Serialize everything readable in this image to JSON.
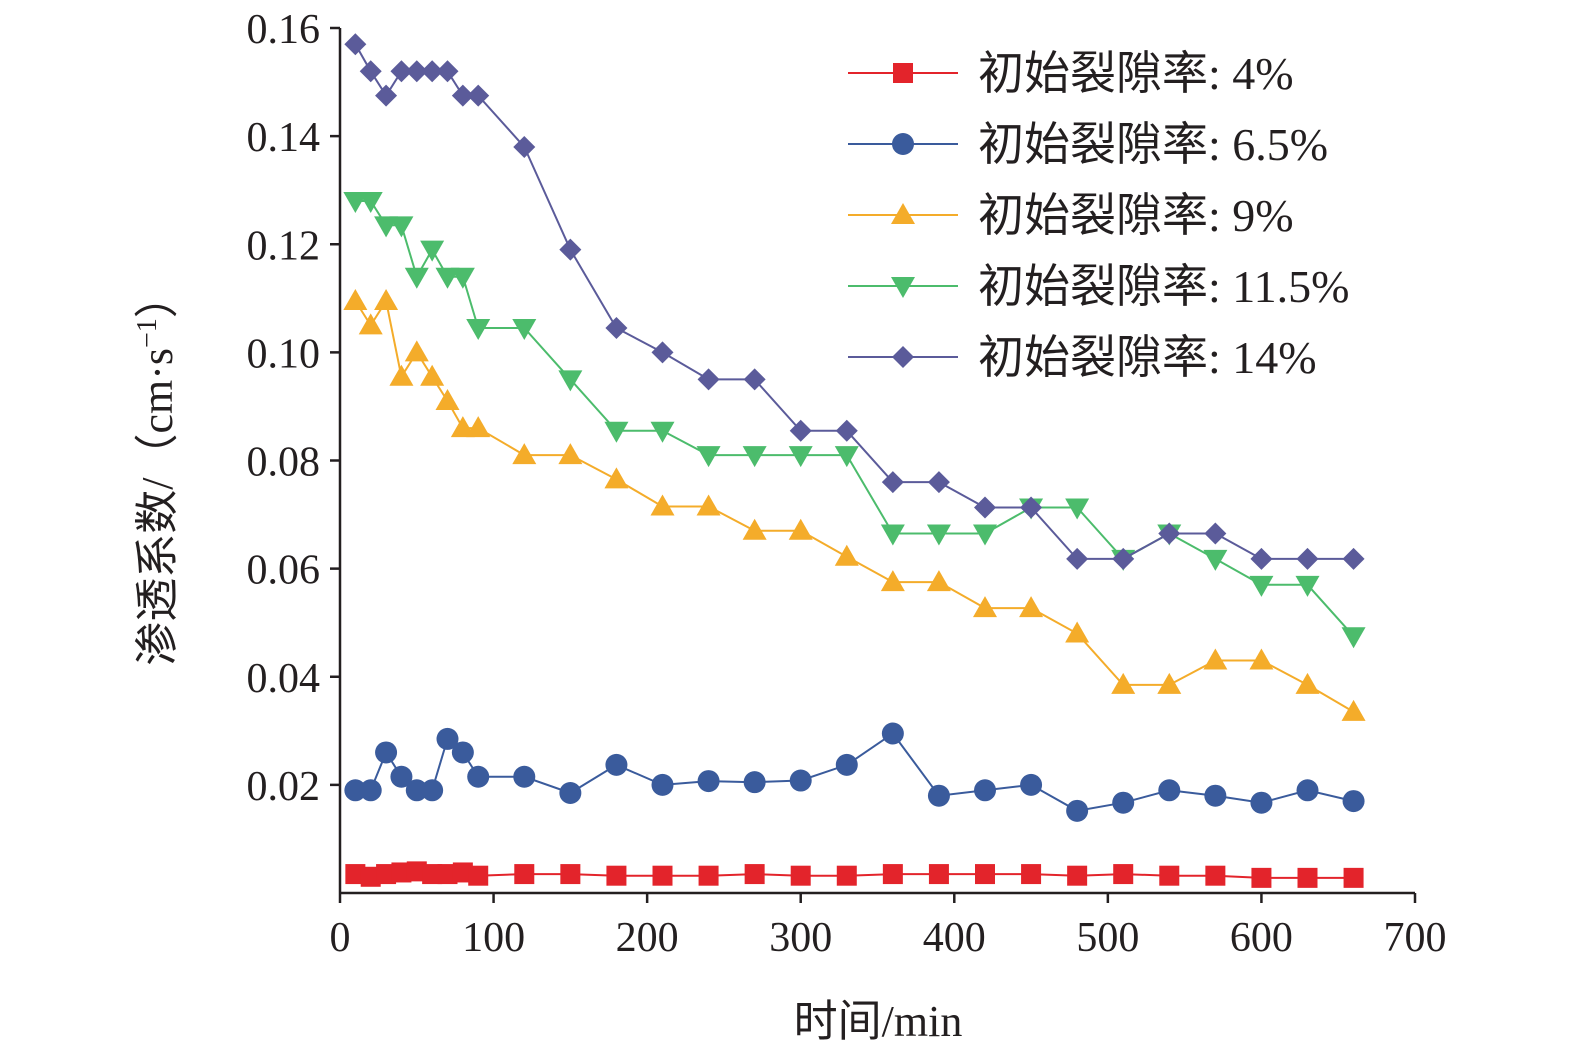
{
  "chart_data": {
    "type": "line",
    "title": "",
    "xlabel": "时间/min",
    "ylabel": "渗透系数/（cm·s",
    "ylabel_sup": "−1",
    "ylabel_close": "）",
    "xlim": [
      0,
      700
    ],
    "ylim": [
      0,
      0.16
    ],
    "xticks": [
      0,
      100,
      200,
      300,
      400,
      500,
      600,
      700
    ],
    "xtick_labels": [
      "0",
      "100",
      "200",
      "300",
      "400",
      "500",
      "600",
      "700"
    ],
    "yticks": [
      0.02,
      0.04,
      0.06,
      0.08,
      0.1,
      0.12,
      0.14,
      0.16
    ],
    "ytick_labels": [
      "0.02",
      "0.04",
      "0.06",
      "0.08",
      "0.10",
      "0.12",
      "0.14",
      "0.16"
    ],
    "grid": false,
    "legend_position": "top-right",
    "series": [
      {
        "name": "初始裂隙率: 4%",
        "color": "#e3242b",
        "marker": "square",
        "points": [
          [
            10,
            0.0035
          ],
          [
            20,
            0.003
          ],
          [
            30,
            0.0035
          ],
          [
            40,
            0.0038
          ],
          [
            50,
            0.004
          ],
          [
            60,
            0.0035
          ],
          [
            70,
            0.0035
          ],
          [
            80,
            0.0038
          ],
          [
            90,
            0.0032
          ],
          [
            120,
            0.0035
          ],
          [
            150,
            0.0035
          ],
          [
            180,
            0.0032
          ],
          [
            210,
            0.0032
          ],
          [
            240,
            0.0032
          ],
          [
            270,
            0.0035
          ],
          [
            300,
            0.0032
          ],
          [
            330,
            0.0032
          ],
          [
            360,
            0.0035
          ],
          [
            390,
            0.0035
          ],
          [
            420,
            0.0035
          ],
          [
            450,
            0.0035
          ],
          [
            480,
            0.0032
          ],
          [
            510,
            0.0035
          ],
          [
            540,
            0.0032
          ],
          [
            570,
            0.0032
          ],
          [
            600,
            0.0028
          ],
          [
            630,
            0.0028
          ],
          [
            660,
            0.0028
          ]
        ]
      },
      {
        "name": "初始裂隙率: 6.5%",
        "color": "#3a5b9c",
        "marker": "circle",
        "points": [
          [
            10,
            0.019
          ],
          [
            20,
            0.019
          ],
          [
            30,
            0.026
          ],
          [
            40,
            0.0215
          ],
          [
            50,
            0.019
          ],
          [
            60,
            0.019
          ],
          [
            70,
            0.0285
          ],
          [
            80,
            0.026
          ],
          [
            90,
            0.0215
          ],
          [
            120,
            0.0215
          ],
          [
            150,
            0.0185
          ],
          [
            180,
            0.0237
          ],
          [
            210,
            0.02
          ],
          [
            240,
            0.0207
          ],
          [
            270,
            0.0205
          ],
          [
            300,
            0.0208
          ],
          [
            330,
            0.0237
          ],
          [
            360,
            0.0295
          ],
          [
            390,
            0.018
          ],
          [
            420,
            0.019
          ],
          [
            450,
            0.02
          ],
          [
            480,
            0.0152
          ],
          [
            510,
            0.0167
          ],
          [
            540,
            0.019
          ],
          [
            570,
            0.018
          ],
          [
            600,
            0.0167
          ],
          [
            630,
            0.019
          ],
          [
            660,
            0.017
          ]
        ]
      },
      {
        "name": "初始裂隙率: 9%",
        "color": "#f4ac2a",
        "marker": "triangle-up",
        "points": [
          [
            10,
            0.1095
          ],
          [
            20,
            0.105
          ],
          [
            30,
            0.1095
          ],
          [
            40,
            0.0955
          ],
          [
            50,
            0.1
          ],
          [
            60,
            0.0955
          ],
          [
            70,
            0.091
          ],
          [
            80,
            0.086
          ],
          [
            90,
            0.086
          ],
          [
            120,
            0.081
          ],
          [
            150,
            0.081
          ],
          [
            180,
            0.0765
          ],
          [
            210,
            0.0715
          ],
          [
            240,
            0.0715
          ],
          [
            270,
            0.067
          ],
          [
            300,
            0.067
          ],
          [
            330,
            0.0622
          ],
          [
            360,
            0.0575
          ],
          [
            390,
            0.0575
          ],
          [
            420,
            0.0527
          ],
          [
            450,
            0.0527
          ],
          [
            480,
            0.048
          ],
          [
            510,
            0.0385
          ],
          [
            540,
            0.0385
          ],
          [
            570,
            0.043
          ],
          [
            600,
            0.043
          ],
          [
            630,
            0.0385
          ],
          [
            660,
            0.0335
          ]
        ]
      },
      {
        "name": "初始裂隙率: 11.5%",
        "color": "#4cbc6c",
        "marker": "triangle-down",
        "points": [
          [
            10,
            0.128
          ],
          [
            20,
            0.128
          ],
          [
            30,
            0.1235
          ],
          [
            40,
            0.1235
          ],
          [
            50,
            0.114
          ],
          [
            60,
            0.119
          ],
          [
            70,
            0.114
          ],
          [
            80,
            0.114
          ],
          [
            90,
            0.1045
          ],
          [
            120,
            0.1045
          ],
          [
            150,
            0.095
          ],
          [
            180,
            0.0855
          ],
          [
            210,
            0.0855
          ],
          [
            240,
            0.081
          ],
          [
            270,
            0.081
          ],
          [
            300,
            0.081
          ],
          [
            330,
            0.081
          ],
          [
            360,
            0.0665
          ],
          [
            390,
            0.0665
          ],
          [
            420,
            0.0665
          ],
          [
            450,
            0.0713
          ],
          [
            480,
            0.0713
          ],
          [
            510,
            0.0618
          ],
          [
            540,
            0.0665
          ],
          [
            570,
            0.0618
          ],
          [
            600,
            0.057
          ],
          [
            630,
            0.057
          ],
          [
            660,
            0.0475
          ]
        ]
      },
      {
        "name": "初始裂隙率: 14%",
        "color": "#5b5b9a",
        "marker": "diamond",
        "points": [
          [
            10,
            0.157
          ],
          [
            20,
            0.152
          ],
          [
            30,
            0.1475
          ],
          [
            40,
            0.152
          ],
          [
            50,
            0.152
          ],
          [
            60,
            0.152
          ],
          [
            70,
            0.152
          ],
          [
            80,
            0.1475
          ],
          [
            90,
            0.1475
          ],
          [
            120,
            0.138
          ],
          [
            150,
            0.119
          ],
          [
            180,
            0.1045
          ],
          [
            210,
            0.1
          ],
          [
            240,
            0.095
          ],
          [
            270,
            0.095
          ],
          [
            300,
            0.0855
          ],
          [
            330,
            0.0855
          ],
          [
            360,
            0.076
          ],
          [
            390,
            0.076
          ],
          [
            420,
            0.0713
          ],
          [
            450,
            0.0713
          ],
          [
            480,
            0.0618
          ],
          [
            510,
            0.0618
          ],
          [
            540,
            0.0665
          ],
          [
            570,
            0.0665
          ],
          [
            600,
            0.0618
          ],
          [
            630,
            0.0618
          ],
          [
            660,
            0.0618
          ]
        ]
      }
    ]
  }
}
